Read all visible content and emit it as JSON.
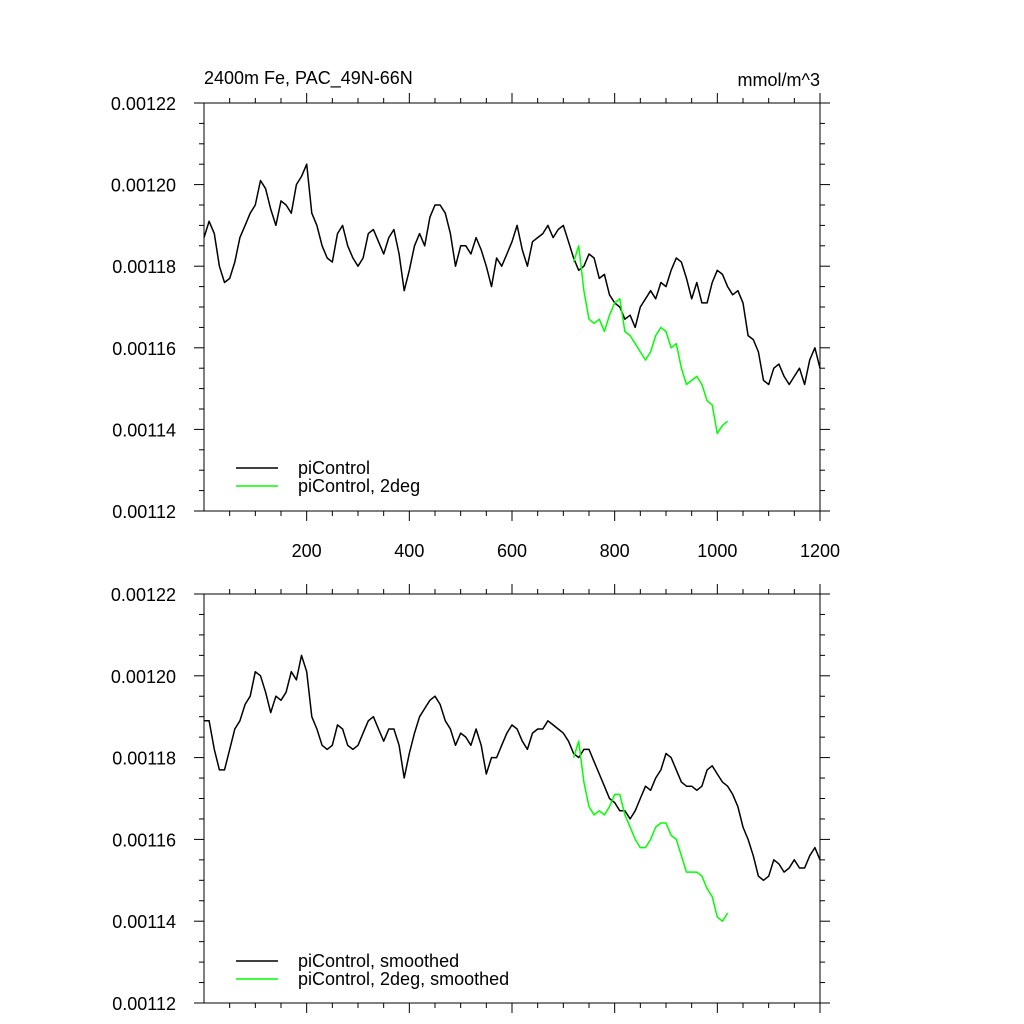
{
  "chart_data": [
    {
      "type": "line",
      "title": "2400m Fe, PAC_49N-66N",
      "units": "mmol/m^3",
      "xlim": [
        0,
        1200
      ],
      "ylim": [
        0.00112,
        0.00122
      ],
      "x_ticks": [
        200,
        400,
        600,
        800,
        1000,
        1200
      ],
      "x_tick_labels": [
        "200",
        "400",
        "600",
        "800",
        "1000",
        "1200"
      ],
      "y_ticks": [
        0.00112,
        0.00114,
        0.00116,
        0.00118,
        0.0012,
        0.00122
      ],
      "y_tick_labels": [
        "0.00112",
        "0.00114",
        "0.00116",
        "0.00118",
        "0.00120",
        "0.00122"
      ],
      "legend_position": "bottom-left",
      "series": [
        {
          "name": "piControl",
          "color": "#000000",
          "x": [
            0,
            10,
            20,
            30,
            40,
            50,
            60,
            70,
            80,
            90,
            100,
            110,
            120,
            130,
            140,
            150,
            160,
            170,
            180,
            190,
            200,
            210,
            220,
            230,
            240,
            250,
            260,
            270,
            280,
            290,
            300,
            310,
            320,
            330,
            340,
            350,
            360,
            370,
            380,
            390,
            400,
            410,
            420,
            430,
            440,
            450,
            460,
            470,
            480,
            490,
            500,
            510,
            520,
            530,
            540,
            550,
            560,
            570,
            580,
            590,
            600,
            610,
            620,
            630,
            640,
            650,
            660,
            670,
            680,
            690,
            700,
            710,
            720,
            730,
            740,
            750,
            760,
            770,
            780,
            790,
            800,
            810,
            820,
            830,
            840,
            850,
            860,
            870,
            880,
            890,
            900,
            910,
            920,
            930,
            940,
            950,
            960,
            970,
            980,
            990,
            1000,
            1010,
            1020,
            1030,
            1040,
            1050,
            1060,
            1070,
            1080,
            1090,
            1100,
            1110,
            1120,
            1130,
            1140,
            1150,
            1160,
            1170,
            1180,
            1190,
            1200
          ],
          "y": [
            0.001187,
            0.001191,
            0.001188,
            0.00118,
            0.001176,
            0.001177,
            0.001181,
            0.001187,
            0.00119,
            0.001193,
            0.001195,
            0.001201,
            0.001199,
            0.001194,
            0.00119,
            0.001196,
            0.001195,
            0.001193,
            0.0012,
            0.001202,
            0.001205,
            0.001193,
            0.00119,
            0.001185,
            0.001182,
            0.001181,
            0.001188,
            0.00119,
            0.001185,
            0.001182,
            0.00118,
            0.001182,
            0.001188,
            0.001189,
            0.001186,
            0.001183,
            0.001187,
            0.001189,
            0.001183,
            0.001174,
            0.001179,
            0.001185,
            0.001188,
            0.001185,
            0.001192,
            0.001195,
            0.001195,
            0.001193,
            0.001188,
            0.00118,
            0.001185,
            0.001185,
            0.001183,
            0.001187,
            0.001184,
            0.00118,
            0.001175,
            0.001182,
            0.00118,
            0.001183,
            0.001186,
            0.00119,
            0.001184,
            0.00118,
            0.001186,
            0.001187,
            0.001188,
            0.00119,
            0.001187,
            0.001189,
            0.00119,
            0.001186,
            0.001182,
            0.001179,
            0.00118,
            0.001183,
            0.001182,
            0.001177,
            0.001178,
            0.001173,
            0.001171,
            0.00117,
            0.001167,
            0.001168,
            0.001165,
            0.00117,
            0.001172,
            0.001174,
            0.001172,
            0.001176,
            0.001175,
            0.001179,
            0.001182,
            0.001181,
            0.001177,
            0.001172,
            0.001176,
            0.001171,
            0.001171,
            0.001176,
            0.001179,
            0.001178,
            0.001175,
            0.001173,
            0.001174,
            0.001171,
            0.001163,
            0.001162,
            0.001159,
            0.001152,
            0.001151,
            0.001155,
            0.001156,
            0.001153,
            0.001151,
            0.001153,
            0.001155,
            0.001151,
            0.001157,
            0.00116,
            0.001155
          ]
        },
        {
          "name": "piControl, 2deg",
          "color": "#00ff00",
          "x": [
            720,
            730,
            740,
            750,
            760,
            770,
            780,
            790,
            800,
            810,
            820,
            830,
            840,
            850,
            860,
            870,
            880,
            890,
            900,
            910,
            920,
            930,
            940,
            950,
            960,
            970,
            980,
            990,
            1000,
            1010,
            1020
          ],
          "y": [
            0.001181,
            0.001185,
            0.001174,
            0.001167,
            0.001166,
            0.001167,
            0.001164,
            0.001168,
            0.001171,
            0.001172,
            0.001164,
            0.001163,
            0.001161,
            0.001159,
            0.001157,
            0.001159,
            0.001163,
            0.001165,
            0.001164,
            0.00116,
            0.001161,
            0.001155,
            0.001151,
            0.001152,
            0.001153,
            0.001151,
            0.001147,
            0.001146,
            0.001139,
            0.001141,
            0.001142
          ]
        }
      ]
    },
    {
      "type": "line",
      "xlim": [
        0,
        1200
      ],
      "ylim": [
        0.00112,
        0.00122
      ],
      "y_ticks": [
        0.00112,
        0.00114,
        0.00116,
        0.00118,
        0.0012,
        0.00122
      ],
      "y_tick_labels": [
        "0.00112",
        "0.00114",
        "0.00116",
        "0.00118",
        "0.00120",
        "0.00122"
      ],
      "legend_position": "bottom-left",
      "series": [
        {
          "name": "piControl, smoothed",
          "color": "#000000",
          "x": [
            0,
            10,
            20,
            30,
            40,
            50,
            60,
            70,
            80,
            90,
            100,
            110,
            120,
            130,
            140,
            150,
            160,
            170,
            180,
            190,
            200,
            210,
            220,
            230,
            240,
            250,
            260,
            270,
            280,
            290,
            300,
            310,
            320,
            330,
            340,
            350,
            360,
            370,
            380,
            390,
            400,
            410,
            420,
            430,
            440,
            450,
            460,
            470,
            480,
            490,
            500,
            510,
            520,
            530,
            540,
            550,
            560,
            570,
            580,
            590,
            600,
            610,
            620,
            630,
            640,
            650,
            660,
            670,
            680,
            690,
            700,
            710,
            720,
            730,
            740,
            750,
            760,
            770,
            780,
            790,
            800,
            810,
            820,
            830,
            840,
            850,
            860,
            870,
            880,
            890,
            900,
            910,
            920,
            930,
            940,
            950,
            960,
            970,
            980,
            990,
            1000,
            1010,
            1020,
            1030,
            1040,
            1050,
            1060,
            1070,
            1080,
            1090,
            1100,
            1110,
            1120,
            1130,
            1140,
            1150,
            1160,
            1170,
            1180,
            1190,
            1200
          ],
          "y": [
            0.001189,
            0.001189,
            0.001182,
            0.001177,
            0.001177,
            0.001182,
            0.001187,
            0.001189,
            0.001193,
            0.001195,
            0.001201,
            0.0012,
            0.001196,
            0.001191,
            0.001195,
            0.001194,
            0.001196,
            0.001201,
            0.001199,
            0.001205,
            0.001201,
            0.00119,
            0.001187,
            0.001183,
            0.001182,
            0.001183,
            0.001188,
            0.001187,
            0.001183,
            0.001182,
            0.001183,
            0.001186,
            0.001189,
            0.00119,
            0.001187,
            0.001184,
            0.001187,
            0.001187,
            0.001183,
            0.001175,
            0.001181,
            0.001186,
            0.00119,
            0.001192,
            0.001194,
            0.001195,
            0.001193,
            0.001189,
            0.001187,
            0.001183,
            0.001186,
            0.001185,
            0.001183,
            0.001187,
            0.001183,
            0.001176,
            0.00118,
            0.00118,
            0.001183,
            0.001186,
            0.001188,
            0.001187,
            0.001184,
            0.001182,
            0.001186,
            0.001187,
            0.001187,
            0.001189,
            0.001188,
            0.001187,
            0.001186,
            0.001184,
            0.001181,
            0.00118,
            0.001182,
            0.001182,
            0.001179,
            0.001176,
            0.001173,
            0.00117,
            0.001169,
            0.001167,
            0.001167,
            0.001165,
            0.001167,
            0.00117,
            0.001173,
            0.001172,
            0.001175,
            0.001177,
            0.001181,
            0.00118,
            0.001177,
            0.001174,
            0.001173,
            0.001173,
            0.001172,
            0.001173,
            0.001177,
            0.001178,
            0.001176,
            0.001174,
            0.001173,
            0.001171,
            0.001168,
            0.001163,
            0.00116,
            0.001156,
            0.001151,
            0.00115,
            0.001151,
            0.001155,
            0.001154,
            0.001152,
            0.001153,
            0.001155,
            0.001153,
            0.001153,
            0.001156,
            0.001158,
            0.001155
          ]
        },
        {
          "name": "piControl, 2deg, smoothed",
          "color": "#00ff00",
          "x": [
            720,
            730,
            740,
            750,
            760,
            770,
            780,
            790,
            800,
            810,
            820,
            830,
            840,
            850,
            860,
            870,
            880,
            890,
            900,
            910,
            920,
            930,
            940,
            950,
            960,
            970,
            980,
            990,
            1000,
            1010,
            1020
          ],
          "y": [
            0.00118,
            0.001184,
            0.001174,
            0.001168,
            0.001166,
            0.001167,
            0.001166,
            0.001168,
            0.001171,
            0.001171,
            0.001166,
            0.001163,
            0.00116,
            0.001158,
            0.001158,
            0.00116,
            0.001163,
            0.001164,
            0.001164,
            0.001161,
            0.00116,
            0.001156,
            0.001152,
            0.001152,
            0.001152,
            0.001151,
            0.001148,
            0.001146,
            0.001141,
            0.00114,
            0.001142
          ]
        }
      ]
    }
  ]
}
